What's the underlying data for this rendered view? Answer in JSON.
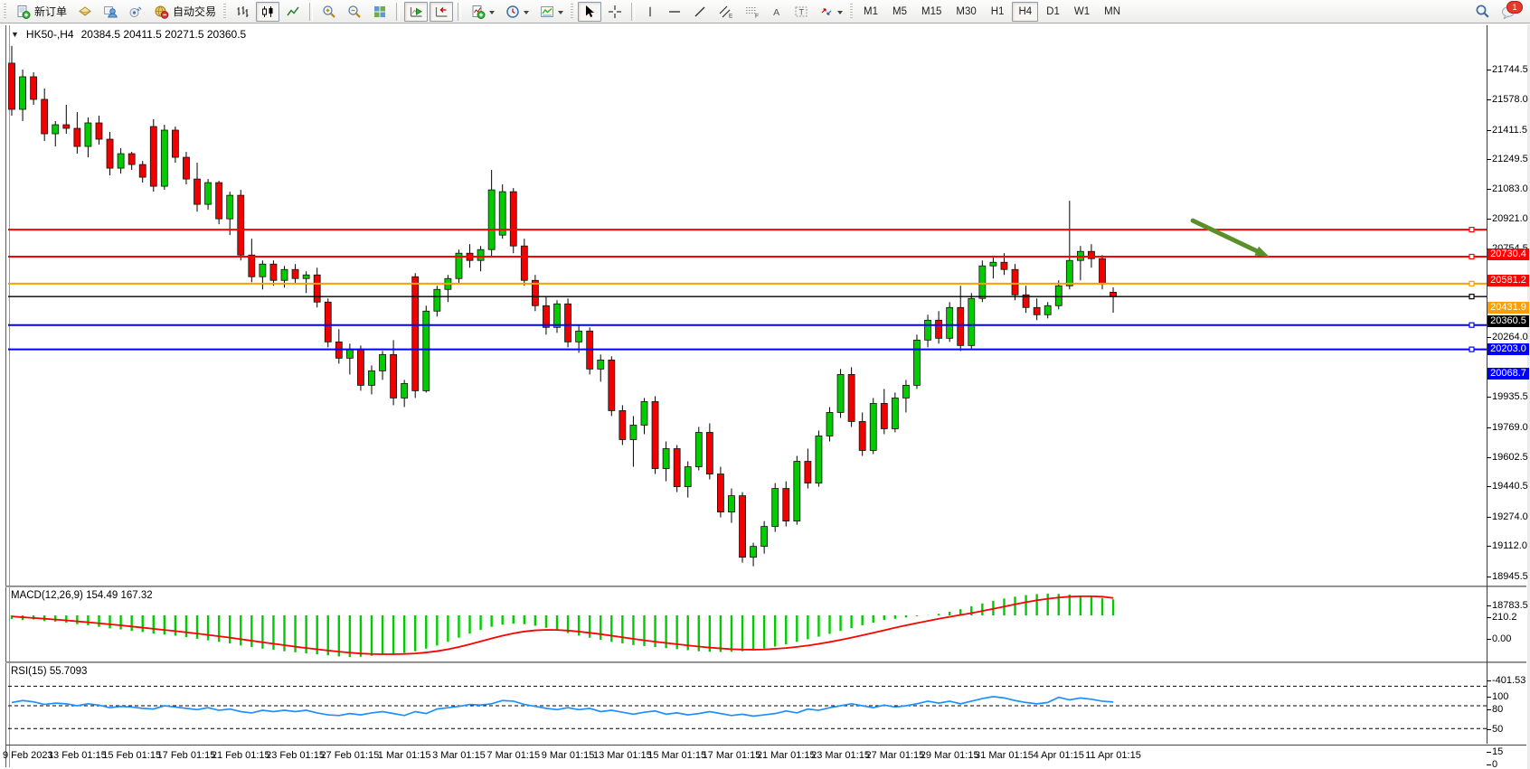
{
  "toolbar": {
    "new_order": "新订单",
    "auto_trading": "自动交易",
    "timeframes": [
      "M1",
      "M5",
      "M15",
      "M30",
      "H1",
      "H4",
      "D1",
      "W1",
      "MN"
    ],
    "active_timeframe": "H4",
    "notification_badge": "1",
    "icons": [
      "new-order-icon",
      "styles-icon",
      "profile-icon",
      "alerts-icon",
      "auto-trading-icon",
      "bar-chart-icon",
      "candle-chart-icon",
      "line-chart-icon",
      "zoom-in-icon",
      "zoom-out-icon",
      "tile-windows-icon",
      "auto-scroll-icon",
      "chart-shift-icon",
      "indicators-icon",
      "periods-icon",
      "templates-icon",
      "cursor-icon",
      "crosshair-icon",
      "vertical-line-icon",
      "horizontal-line-icon",
      "trendline-icon",
      "channel-icon",
      "fibonacci-icon",
      "text-icon",
      "text-label-icon",
      "arrow-tools-icon",
      "search-icon",
      "chat-icon"
    ]
  },
  "chart": {
    "symbol_period": "HK50-,H4",
    "ohlc": "20384.5 20411.5 20271.5 20360.5",
    "open": "20384.5",
    "high": "20411.5",
    "low": "20271.5",
    "close": "20360.5"
  },
  "indicators": {
    "macd_label": "MACD(12,26,9) 154.49 167.32",
    "rsi_label": "RSI(15) 55.7093"
  },
  "chart_data": [
    {
      "type": "candlestick",
      "title": "HK50-,H4",
      "timeframe": "H4",
      "up_color": "#00CC00",
      "down_color": "#F20000",
      "ylim": [
        18740,
        21790
      ],
      "y_ticks": [
        21744.5,
        21578.0,
        21411.5,
        21249.5,
        21083.0,
        20921.0,
        20754.5,
        20264.0,
        19935.5,
        19769.0,
        19602.5,
        19440.5,
        19274.0,
        19112.0,
        18945.5,
        18783.5
      ],
      "x_labels": [
        "9 Feb 2023",
        "13 Feb 01:15",
        "15 Feb 01:15",
        "17 Feb 01:15",
        "21 Feb 01:15",
        "23 Feb 01:15",
        "27 Feb 01:15",
        "1 Mar 01:15",
        "3 Mar 01:15",
        "7 Mar 01:15",
        "9 Mar 01:15",
        "13 Mar 01:15",
        "15 Mar 01:15",
        "17 Mar 01:15",
        "21 Mar 01:15",
        "23 Mar 01:15",
        "27 Mar 01:15",
        "29 Mar 01:15",
        "31 Mar 01:15",
        "4 Apr 01:15",
        "11 Apr 01:15"
      ],
      "label_start_index": 1,
      "label_every": 5,
      "hlines": [
        {
          "price": 20730.4,
          "label": "20730.4",
          "color": "#FF0000"
        },
        {
          "price": 20581.2,
          "label": "20581.2",
          "color": "#FF0000"
        },
        {
          "price": 20431.9,
          "label": "20431.9",
          "color": "#FF9E00"
        },
        {
          "price": 20360.5,
          "label": "20360.5",
          "color": "#000000",
          "role": "current-price"
        },
        {
          "price": 20203.0,
          "label": "20203.0",
          "color": "#0000FF"
        },
        {
          "price": 20068.7,
          "label": "20068.7",
          "color": "#0000FF"
        }
      ],
      "annotation_arrow": {
        "color": "#5A8F29",
        "from": {
          "bar": 108.3,
          "price": 20780
        },
        "to": {
          "bar": 114.6,
          "price": 20600
        }
      },
      "candles": [
        [
          21650,
          21745,
          21360,
          21395
        ],
        [
          21395,
          21615,
          21330,
          21575
        ],
        [
          21575,
          21600,
          21420,
          21450
        ],
        [
          21450,
          21510,
          21220,
          21260
        ],
        [
          21260,
          21330,
          21190,
          21310
        ],
        [
          21310,
          21420,
          21260,
          21290
        ],
        [
          21290,
          21380,
          21150,
          21190
        ],
        [
          21190,
          21350,
          21130,
          21320
        ],
        [
          21320,
          21360,
          21200,
          21230
        ],
        [
          21230,
          21270,
          21030,
          21070
        ],
        [
          21070,
          21180,
          21040,
          21150
        ],
        [
          21150,
          21160,
          21060,
          21090
        ],
        [
          21090,
          21110,
          20990,
          21020
        ],
        [
          21300,
          21340,
          20940,
          20970
        ],
        [
          20970,
          21310,
          20950,
          21280
        ],
        [
          21280,
          21300,
          21100,
          21130
        ],
        [
          21130,
          21160,
          20980,
          21010
        ],
        [
          21010,
          21100,
          20830,
          20870
        ],
        [
          20870,
          21010,
          20840,
          20990
        ],
        [
          20990,
          21000,
          20760,
          20790
        ],
        [
          20790,
          20940,
          20700,
          20920
        ],
        [
          20920,
          20950,
          20560,
          20590
        ],
        [
          20590,
          20680,
          20440,
          20470
        ],
        [
          20470,
          20560,
          20400,
          20540
        ],
        [
          20540,
          20560,
          20420,
          20450
        ],
        [
          20450,
          20530,
          20410,
          20510
        ],
        [
          20510,
          20540,
          20430,
          20460
        ],
        [
          20460,
          20500,
          20380,
          20480
        ],
        [
          20480,
          20520,
          20300,
          20330
        ],
        [
          20330,
          20350,
          20080,
          20110
        ],
        [
          20110,
          20180,
          19990,
          20020
        ],
        [
          20020,
          20100,
          19930,
          20070
        ],
        [
          20070,
          20090,
          19840,
          19870
        ],
        [
          19870,
          19980,
          19820,
          19950
        ],
        [
          19950,
          20060,
          19900,
          20040
        ],
        [
          20040,
          20120,
          19760,
          19800
        ],
        [
          19800,
          19900,
          19750,
          19880
        ],
        [
          20470,
          20490,
          19800,
          19840
        ],
        [
          19840,
          20310,
          19830,
          20280
        ],
        [
          20280,
          20420,
          20250,
          20400
        ],
        [
          20400,
          20480,
          20330,
          20460
        ],
        [
          20460,
          20620,
          20430,
          20600
        ],
        [
          20600,
          20650,
          20520,
          20560
        ],
        [
          20560,
          20640,
          20500,
          20620
        ],
        [
          20620,
          21060,
          20580,
          20950
        ],
        [
          20700,
          20980,
          20680,
          20940
        ],
        [
          20940,
          20960,
          20600,
          20640
        ],
        [
          20640,
          20680,
          20420,
          20450
        ],
        [
          20450,
          20480,
          20280,
          20310
        ],
        [
          20310,
          20360,
          20150,
          20190
        ],
        [
          20190,
          20340,
          20160,
          20320
        ],
        [
          20320,
          20350,
          20080,
          20110
        ],
        [
          20110,
          20200,
          20050,
          20170
        ],
        [
          20170,
          20190,
          19930,
          19960
        ],
        [
          19960,
          20040,
          19890,
          20010
        ],
        [
          20010,
          20030,
          19700,
          19730
        ],
        [
          19730,
          19760,
          19540,
          19570
        ],
        [
          19570,
          19700,
          19420,
          19650
        ],
        [
          19650,
          19800,
          19600,
          19780
        ],
        [
          19780,
          19810,
          19380,
          19410
        ],
        [
          19410,
          19560,
          19340,
          19520
        ],
        [
          19520,
          19540,
          19280,
          19310
        ],
        [
          19310,
          19450,
          19250,
          19420
        ],
        [
          19420,
          19640,
          19400,
          19610
        ],
        [
          19610,
          19660,
          19350,
          19380
        ],
        [
          19380,
          19420,
          19140,
          19170
        ],
        [
          19170,
          19300,
          19110,
          19260
        ],
        [
          19260,
          19280,
          18890,
          18920
        ],
        [
          18920,
          19000,
          18870,
          18980
        ],
        [
          18980,
          19120,
          18940,
          19090
        ],
        [
          19090,
          19330,
          19060,
          19300
        ],
        [
          19300,
          19340,
          19090,
          19120
        ],
        [
          19120,
          19480,
          19100,
          19450
        ],
        [
          19450,
          19520,
          19300,
          19330
        ],
        [
          19330,
          19620,
          19310,
          19590
        ],
        [
          19590,
          19750,
          19560,
          19720
        ],
        [
          19720,
          19960,
          19690,
          19930
        ],
        [
          19930,
          19970,
          19640,
          19670
        ],
        [
          19670,
          19720,
          19480,
          19510
        ],
        [
          19510,
          19800,
          19490,
          19770
        ],
        [
          19770,
          19850,
          19600,
          19630
        ],
        [
          19630,
          19830,
          19610,
          19800
        ],
        [
          19800,
          19900,
          19720,
          19870
        ],
        [
          19870,
          20150,
          19850,
          20120
        ],
        [
          20120,
          20260,
          20080,
          20230
        ],
        [
          20230,
          20280,
          20100,
          20130
        ],
        [
          20130,
          20330,
          20110,
          20300
        ],
        [
          20300,
          20420,
          20060,
          20090
        ],
        [
          20090,
          20380,
          20070,
          20350
        ],
        [
          20350,
          20560,
          20330,
          20530
        ],
        [
          20530,
          20580,
          20460,
          20550
        ],
        [
          20550,
          20600,
          20480,
          20510
        ],
        [
          20510,
          20540,
          20340,
          20370
        ],
        [
          20370,
          20420,
          20270,
          20300
        ],
        [
          20300,
          20350,
          20230,
          20260
        ],
        [
          20260,
          20330,
          20240,
          20310
        ],
        [
          20310,
          20450,
          20290,
          20420
        ],
        [
          20420,
          20890,
          20400,
          20560
        ],
        [
          20560,
          20640,
          20450,
          20610
        ],
        [
          20610,
          20650,
          20520,
          20570
        ],
        [
          20570,
          20590,
          20400,
          20430
        ],
        [
          20384.5,
          20411.5,
          20271.5,
          20360.5
        ]
      ]
    },
    {
      "type": "bar",
      "name": "MACD(12,26,9)",
      "current_values": [
        154.49,
        167.32
      ],
      "histogram_color": "#00CC00",
      "signal_color": "#FF0000",
      "y_ticks": [
        210.2,
        0,
        -401.53
      ],
      "ylim": [
        -430,
        290
      ],
      "values_histogram": [
        -35,
        -45,
        -40,
        -55,
        -60,
        -70,
        -85,
        -95,
        -110,
        -125,
        -135,
        -150,
        -160,
        -175,
        -185,
        -195,
        -210,
        -225,
        -240,
        -255,
        -270,
        -290,
        -305,
        -320,
        -330,
        -345,
        -355,
        -365,
        -375,
        -385,
        -395,
        -401,
        -398,
        -390,
        -380,
        -370,
        -360,
        -345,
        -320,
        -290,
        -255,
        -215,
        -175,
        -140,
        -110,
        -90,
        -80,
        -85,
        -100,
        -120,
        -145,
        -170,
        -195,
        -215,
        -235,
        -255,
        -270,
        -285,
        -295,
        -305,
        -315,
        -325,
        -335,
        -345,
        -350,
        -352,
        -350,
        -345,
        -335,
        -320,
        -300,
        -278,
        -255,
        -230,
        -205,
        -178,
        -150,
        -122,
        -95,
        -70,
        -45,
        -32,
        -20,
        -8,
        2,
        15,
        35,
        60,
        88,
        115,
        140,
        162,
        180,
        195,
        205,
        210,
        207,
        200,
        190,
        178,
        166,
        154.49
      ],
      "values_signal": [
        -10,
        -18,
        -25,
        -32,
        -40,
        -48,
        -57,
        -66,
        -76,
        -86,
        -96,
        -107,
        -118,
        -129,
        -140,
        -151,
        -163,
        -175,
        -188,
        -201,
        -214,
        -229,
        -244,
        -259,
        -273,
        -287,
        -301,
        -314,
        -326,
        -338,
        -349,
        -359,
        -367,
        -372,
        -374,
        -374,
        -371,
        -366,
        -357,
        -344,
        -326,
        -304,
        -278,
        -250,
        -222,
        -196,
        -173,
        -155,
        -144,
        -139,
        -140,
        -146,
        -156,
        -168,
        -181,
        -196,
        -211,
        -226,
        -240,
        -253,
        -265,
        -277,
        -289,
        -300,
        -310,
        -318,
        -325,
        -329,
        -330,
        -328,
        -322,
        -314,
        -303,
        -290,
        -274,
        -256,
        -236,
        -214,
        -191,
        -167,
        -143,
        -119,
        -96,
        -74,
        -53,
        -33,
        -14,
        4,
        22,
        42,
        63,
        85,
        107,
        127,
        145,
        160,
        172,
        180,
        184,
        184,
        180,
        167.32
      ]
    },
    {
      "type": "line",
      "name": "RSI(15)",
      "current_value": 55.7093,
      "line_color": "#1E90FF",
      "levels": [
        80,
        50,
        15
      ],
      "y_ticks": [
        100,
        80,
        50,
        15,
        0
      ],
      "ylim": [
        0,
        100
      ],
      "values": [
        55,
        58,
        56,
        52,
        54,
        53,
        50,
        53,
        51,
        47,
        49,
        48,
        46,
        45,
        50,
        48,
        46,
        44,
        47,
        43,
        45,
        41,
        39,
        43,
        41,
        43,
        41,
        43,
        39,
        36,
        35,
        38,
        36,
        39,
        41,
        38,
        35,
        41,
        38,
        45,
        47,
        49,
        52,
        51,
        53,
        58,
        57,
        52,
        49,
        46,
        44,
        47,
        44,
        46,
        41,
        43,
        40,
        37,
        40,
        42,
        37,
        39,
        36,
        38,
        41,
        38,
        35,
        37,
        34,
        36,
        38,
        42,
        39,
        45,
        43,
        47,
        50,
        53,
        50,
        47,
        51,
        48,
        50,
        53,
        57,
        54,
        57,
        53,
        57,
        61,
        64,
        62,
        58,
        55,
        53,
        55,
        63,
        59,
        62,
        60,
        57,
        55.7
      ]
    }
  ]
}
